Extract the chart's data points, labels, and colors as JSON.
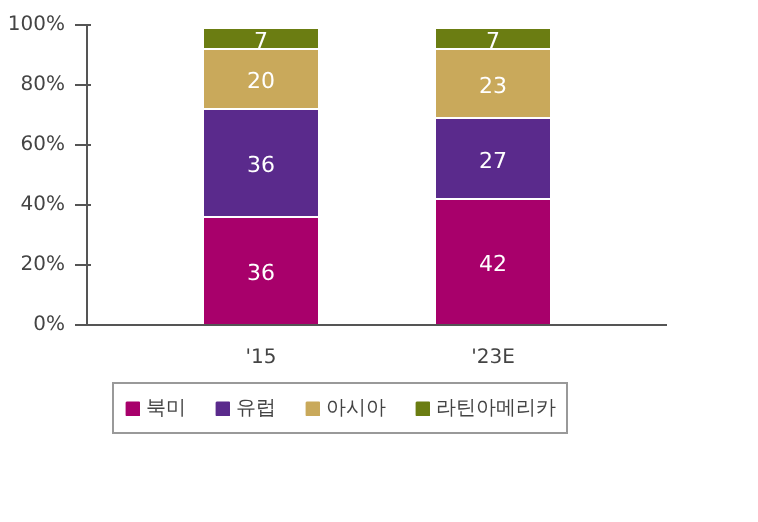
{
  "chart_data": {
    "type": "bar",
    "stacked": true,
    "categories": [
      "'15",
      "'23E"
    ],
    "series": [
      {
        "name": "북미",
        "color": "#a8006b",
        "values": [
          36,
          42
        ]
      },
      {
        "name": "유럽",
        "color": "#5a2a8c",
        "values": [
          36,
          27
        ]
      },
      {
        "name": "아시아",
        "color": "#c9a95b",
        "values": [
          20,
          23
        ]
      },
      {
        "name": "라틴아메리카",
        "color": "#6b7d12",
        "values": [
          7,
          7
        ]
      }
    ],
    "ylim": [
      0,
      100
    ],
    "yticks": [
      {
        "value": 0,
        "label": "0%"
      },
      {
        "value": 20,
        "label": "20%"
      },
      {
        "value": 40,
        "label": "40%"
      },
      {
        "value": 60,
        "label": "60%"
      },
      {
        "value": 80,
        "label": "80%"
      },
      {
        "value": 100,
        "label": "100%"
      }
    ],
    "data_labels": true,
    "grid": false,
    "legend": "bottom"
  }
}
